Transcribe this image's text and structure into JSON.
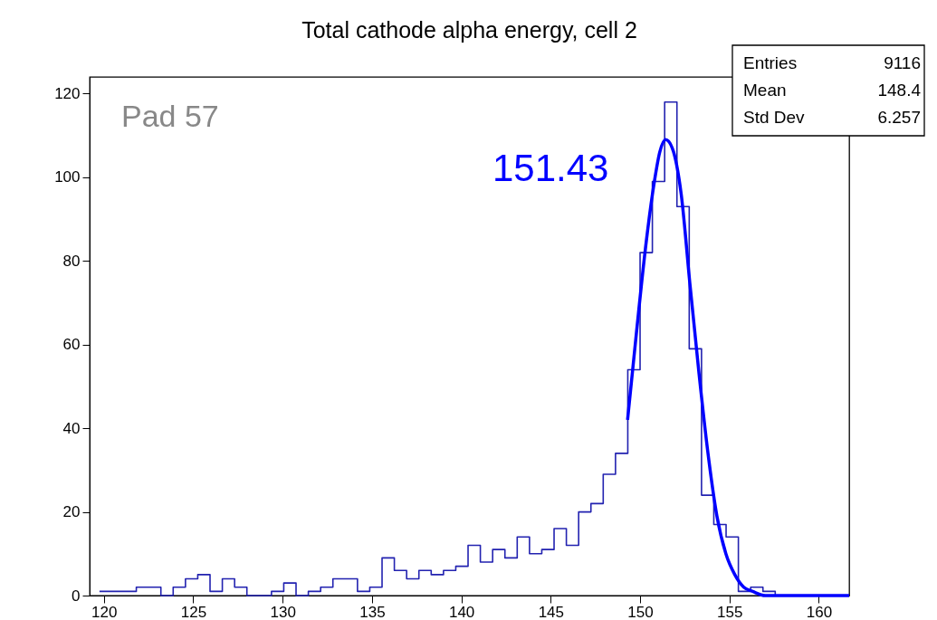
{
  "chart_data": {
    "type": "histogram",
    "title": "Total cathode alpha energy, cell 2",
    "bins": [
      119.75,
      120.4375,
      121.125,
      121.8125,
      122.5,
      123.1875,
      123.875,
      124.5625,
      125.25,
      125.9375,
      126.625,
      127.3125,
      128,
      128.6875,
      129.375,
      130.0625,
      130.75,
      131.4375,
      132.125,
      132.8125,
      133.5,
      134.1875,
      134.875,
      135.5625,
      136.25,
      136.9375,
      137.625,
      138.3125,
      139,
      139.6875,
      140.375,
      141.0625,
      141.75,
      142.4375,
      143.125,
      143.8125,
      144.5,
      145.1875,
      145.875,
      146.5625,
      147.25,
      147.9375,
      148.625,
      149.3125,
      150,
      150.6875,
      151.375,
      152.0625,
      152.75,
      153.4375,
      154.125,
      154.8125,
      155.5,
      156.1875,
      156.875,
      157.5625,
      158.25,
      158.9375,
      159.625,
      160.3125,
      161,
      161.6875
    ],
    "series": [
      {
        "color": "#2222b0",
        "values": [
          1,
          1,
          1,
          2,
          2,
          0,
          2,
          4,
          5,
          1,
          4,
          2,
          0,
          0,
          1,
          3,
          0,
          1,
          2,
          4,
          4,
          1,
          2,
          9,
          6,
          4,
          6,
          5,
          6,
          7,
          12,
          8,
          11,
          9,
          14,
          10,
          11,
          16,
          12,
          20,
          22,
          29,
          34,
          54,
          82,
          99,
          118,
          93,
          59,
          24,
          17,
          14,
          1,
          2,
          1,
          0,
          0,
          0,
          0,
          0,
          0
        ]
      },
      {
        "type": "line",
        "color": "#0000ff",
        "x": [
          149.3,
          149.8,
          150.3,
          150.8,
          151.1,
          151.43,
          151.8,
          152.3,
          152.8,
          153.3,
          153.8,
          154.3,
          154.8,
          155.3,
          155.8,
          156.3,
          157,
          161.7
        ],
        "values": [
          42,
          63,
          83,
          99,
          106,
          109,
          107,
          96,
          74,
          53,
          34,
          19,
          10,
          5,
          2,
          1,
          0,
          0
        ]
      }
    ],
    "xlim": [
      119.2,
      161.7
    ],
    "xticks": [
      120,
      125,
      130,
      135,
      140,
      145,
      150,
      155,
      160
    ],
    "ylim": [
      0,
      124
    ],
    "yticks": [
      0,
      20,
      40,
      60,
      80,
      100,
      120
    ],
    "grid": false,
    "annotations": [
      "Pad 57",
      "151.43",
      "Entries",
      "9116",
      "Mean",
      "148.4",
      "Std Dev",
      "6.257"
    ]
  }
}
